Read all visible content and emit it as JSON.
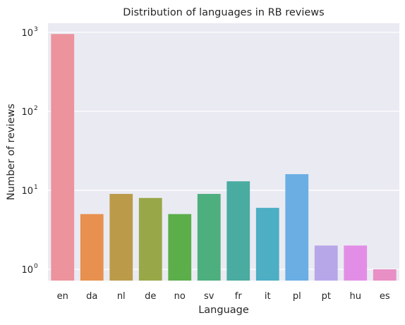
{
  "chart_data": {
    "type": "bar",
    "title": "Distribution of languages in RB reviews",
    "xlabel": "Language",
    "ylabel": "Number of reviews",
    "yscale": "log",
    "ylim": [
      0.72,
      1300
    ],
    "grid": true,
    "y_ticks": [
      {
        "value": 1,
        "base": "10",
        "exp": "0"
      },
      {
        "value": 10,
        "base": "10",
        "exp": "1"
      },
      {
        "value": 100,
        "base": "10",
        "exp": "2"
      },
      {
        "value": 1000,
        "base": "10",
        "exp": "3"
      }
    ],
    "categories": [
      "en",
      "da",
      "nl",
      "de",
      "no",
      "sv",
      "fr",
      "it",
      "pl",
      "pt",
      "hu",
      "es"
    ],
    "values": [
      950,
      5,
      9,
      8,
      5,
      9,
      13,
      6,
      16,
      2,
      2,
      1
    ],
    "colors": [
      "#ec939e",
      "#e7904f",
      "#bb9a4a",
      "#98a748",
      "#5bae4a",
      "#4dae7e",
      "#4aaba0",
      "#4daec4",
      "#6aaee3",
      "#b7a7e9",
      "#e28ee6",
      "#e88fc5"
    ],
    "background_color": "#eaeaf2",
    "grid_color": "#ffffff"
  }
}
